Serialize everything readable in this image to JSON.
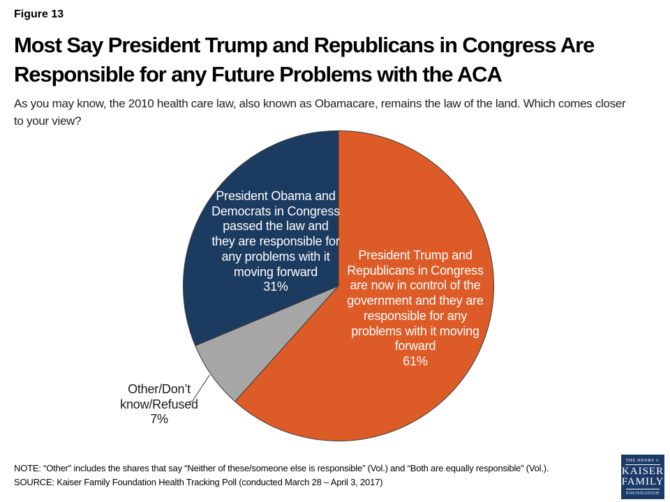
{
  "page": {
    "background": "#FFFFFF"
  },
  "header": {
    "figure_label": "Figure 13",
    "title": "Most Say President Trump and Republicans in Congress Are\nResponsible for any Future Problems with the ACA",
    "subtitle": "As you may know, the 2010 health care law, also known as Obamacare, remains the law of the land. Which comes closer\nto your view?"
  },
  "chart_data": {
    "type": "pie",
    "start_angle": "top",
    "direction": "clockwise",
    "stroke_color": "#3A3A3A",
    "slices": [
      {
        "id": "trump-republicans",
        "label": "President Trump and Republicans in Congress are now in control of the government and they are responsible for any problems with it moving forward",
        "value_pct": 61,
        "color": "#DD5B27",
        "label_placement": "inside",
        "label_color": "#FFFFFF",
        "label_display": "President Trump and\nRepublicans in Congress\nare now in control of the\ngovernment and they are\nresponsible for any\nproblems with it moving\nforward\n61%"
      },
      {
        "id": "other-dont-know-refused",
        "label": "Other/Don’t know/Refused",
        "value_pct": 7,
        "color": "#A6A6A6",
        "label_placement": "outside-left",
        "label_color": "#1A1A1A",
        "label_display": "Other/Don’t\nknow/Refused\n7%"
      },
      {
        "id": "obama-democrats",
        "label": "President Obama and Democrats in Congress passed the law and they are responsible for any problems with it moving forward",
        "value_pct": 31,
        "color": "#1C3B60",
        "label_placement": "inside",
        "label_color": "#FFFFFF",
        "label_display": "President Obama and\nDemocrats in Congress\npassed the law and\nthey are responsible for\nany problems with it\nmoving forward\n31%"
      }
    ]
  },
  "footer": {
    "note": "NOTE: “Other” includes the shares that say “Neither of these/someone else is responsible” (Vol.) and “Both are equally responsible” (Vol.).",
    "source": "SOURCE: Kaiser Family Foundation Health Tracking Poll (conducted March 28 – April 3, 2017)"
  },
  "logo": {
    "line1": "THE HENRY J.",
    "line2": "KAISER",
    "line3": "FAMILY",
    "line4": "FOUNDATION",
    "bg_color": "#1B3A68"
  }
}
